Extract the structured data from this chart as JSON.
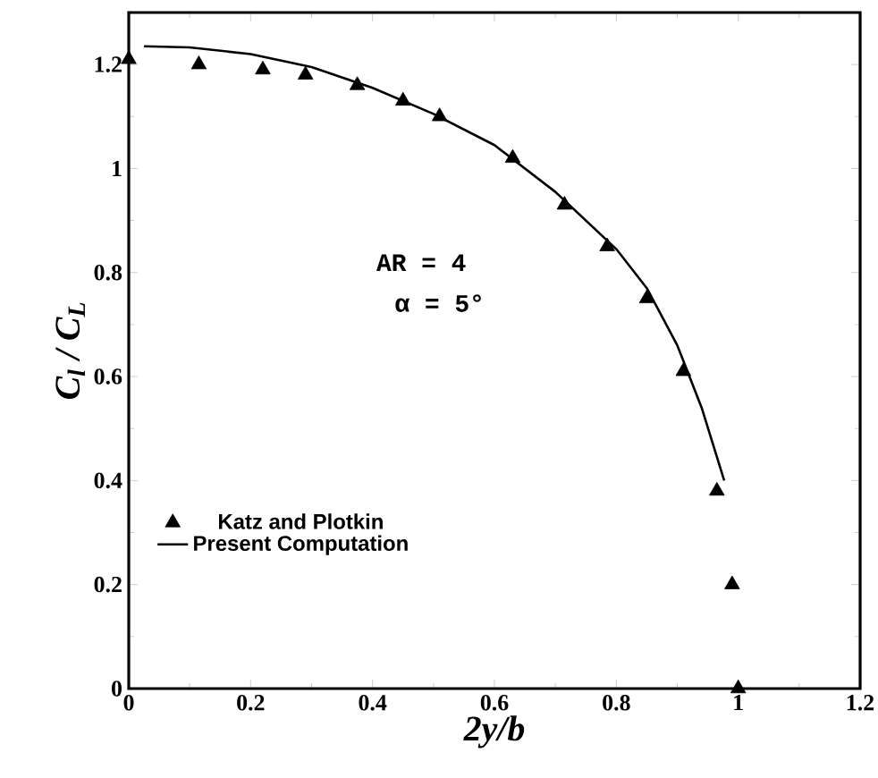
{
  "chart_data": {
    "type": "scatter",
    "xlabel": "2y/b",
    "ylabel": "C$_{l}$ / C$_{L}$",
    "annotations": [
      "AR = 4",
      "α = 5°"
    ],
    "series": [
      {
        "name": "Katz and Plotkin",
        "color": "#000000",
        "marker": "triangle",
        "x": [
          0,
          0.115,
          0.22,
          0.29,
          0.375,
          0.45,
          0.51,
          0.63,
          0.715,
          0.785,
          0.85,
          0.91,
          0.965,
          0.99,
          1.0
        ],
        "values": [
          1.21,
          1.2,
          1.19,
          1.18,
          1.16,
          1.13,
          1.1,
          1.02,
          0.93,
          0.85,
          0.75,
          0.61,
          0.38,
          0.2,
          0.0
        ]
      },
      {
        "name": "Present Computation",
        "type": "line",
        "color": "#000000",
        "line_style": "solid",
        "x": [
          0.025,
          0.1,
          0.2,
          0.3,
          0.4,
          0.5,
          0.6,
          0.7,
          0.8,
          0.85,
          0.9,
          0.94,
          0.977
        ],
        "values": [
          1.235,
          1.233,
          1.22,
          1.195,
          1.155,
          1.105,
          1.045,
          0.955,
          0.845,
          0.77,
          0.66,
          0.54,
          0.4
        ]
      }
    ],
    "xlim": [
      0,
      1.2
    ],
    "ylim": [
      0,
      1.3
    ],
    "xticks": [
      0,
      0.2,
      0.4,
      0.6,
      0.8,
      1,
      1.2
    ],
    "yticks": [
      0,
      0.2,
      0.4,
      0.6,
      0.8,
      1,
      1.2
    ],
    "grid": false,
    "legend": "bottom left"
  }
}
